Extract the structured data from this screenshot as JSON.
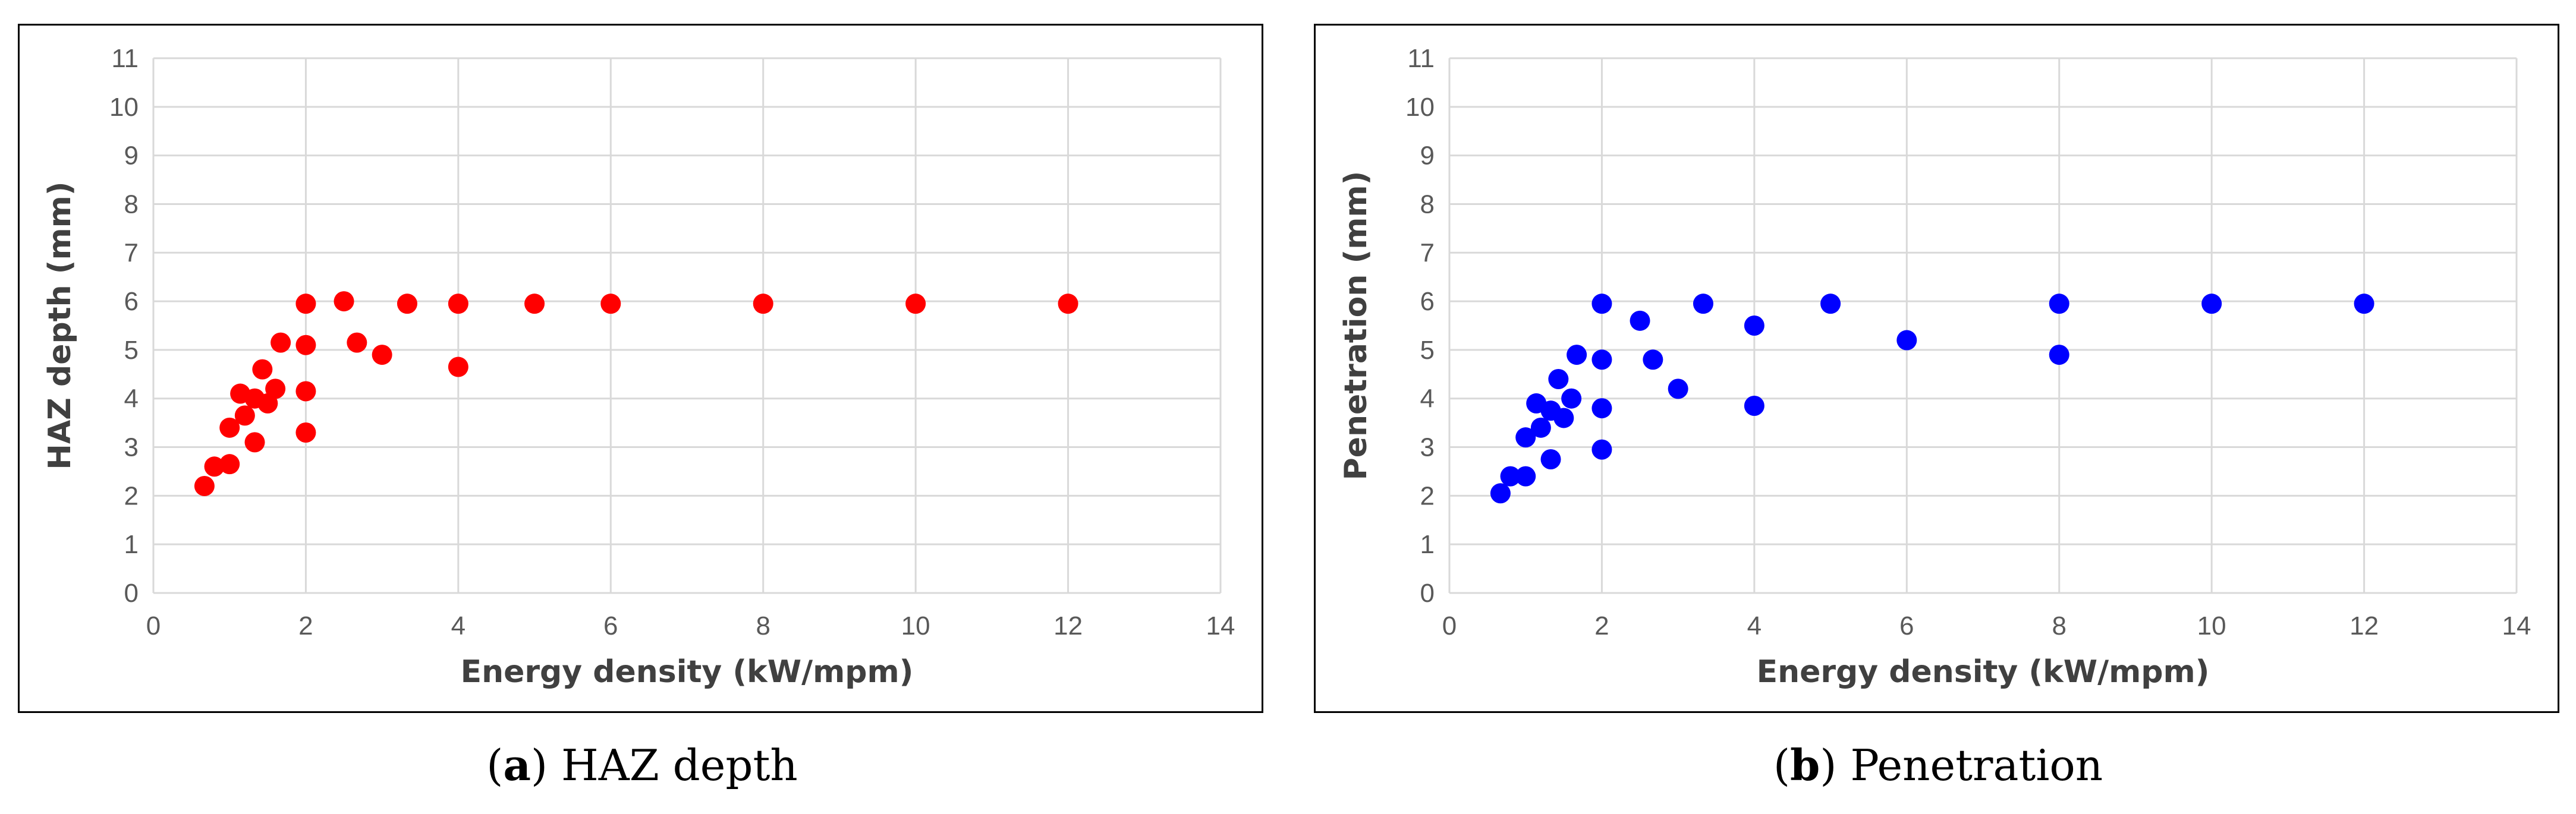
{
  "chart_data": [
    {
      "type": "scatter",
      "caption_letter": "a",
      "caption_text": ") HAZ depth",
      "xlabel": "Energy density (kW/mpm)",
      "ylabel": "HAZ depth (mm)",
      "xlim": [
        0,
        14
      ],
      "ylim": [
        0,
        11
      ],
      "xticks": [
        "0",
        "2",
        "4",
        "6",
        "8",
        "10",
        "12",
        "14"
      ],
      "yticks": [
        "0",
        "1",
        "2",
        "3",
        "4",
        "5",
        "6",
        "7",
        "8",
        "9",
        "10",
        "11"
      ],
      "grid": true,
      "marker_color": "#ff0000",
      "x": [
        0.67,
        0.8,
        1.0,
        1.0,
        1.14,
        1.2,
        1.33,
        1.33,
        1.43,
        1.5,
        1.6,
        1.67,
        2.0,
        2.0,
        2.0,
        2.0,
        2.5,
        2.67,
        3.0,
        3.33,
        4.0,
        4.0,
        5.0,
        6.0,
        8.0,
        10.0,
        12.0
      ],
      "y": [
        2.2,
        2.6,
        2.65,
        3.4,
        4.1,
        3.65,
        3.1,
        4.0,
        4.6,
        3.9,
        4.2,
        5.15,
        3.3,
        4.15,
        5.1,
        5.95,
        6.0,
        5.15,
        4.9,
        5.95,
        5.95,
        4.65,
        5.95,
        5.95,
        5.95,
        5.95,
        5.95
      ]
    },
    {
      "type": "scatter",
      "caption_letter": "b",
      "caption_text": ") Penetration",
      "xlabel": "Energy density (kW/mpm)",
      "ylabel": "Penetration (mm)",
      "xlim": [
        0,
        14
      ],
      "ylim": [
        0,
        11
      ],
      "xticks": [
        "0",
        "2",
        "4",
        "6",
        "8",
        "10",
        "12",
        "14"
      ],
      "yticks": [
        "0",
        "1",
        "2",
        "3",
        "4",
        "5",
        "6",
        "7",
        "8",
        "9",
        "10",
        "11"
      ],
      "grid": true,
      "marker_color": "#0000ff",
      "x": [
        0.67,
        0.8,
        1.0,
        1.0,
        1.14,
        1.2,
        1.33,
        1.33,
        1.43,
        1.5,
        1.6,
        1.67,
        2.0,
        2.0,
        2.0,
        2.0,
        2.5,
        2.67,
        3.0,
        3.33,
        4.0,
        4.0,
        5.0,
        6.0,
        8.0,
        8.0,
        10.0,
        12.0
      ],
      "y": [
        2.05,
        2.4,
        2.4,
        3.2,
        3.9,
        3.4,
        2.75,
        3.75,
        4.4,
        3.6,
        4.0,
        4.9,
        2.95,
        3.8,
        4.8,
        5.95,
        5.6,
        4.8,
        4.2,
        5.95,
        5.5,
        3.85,
        5.95,
        5.2,
        5.95,
        4.9,
        5.95,
        5.95
      ]
    }
  ]
}
